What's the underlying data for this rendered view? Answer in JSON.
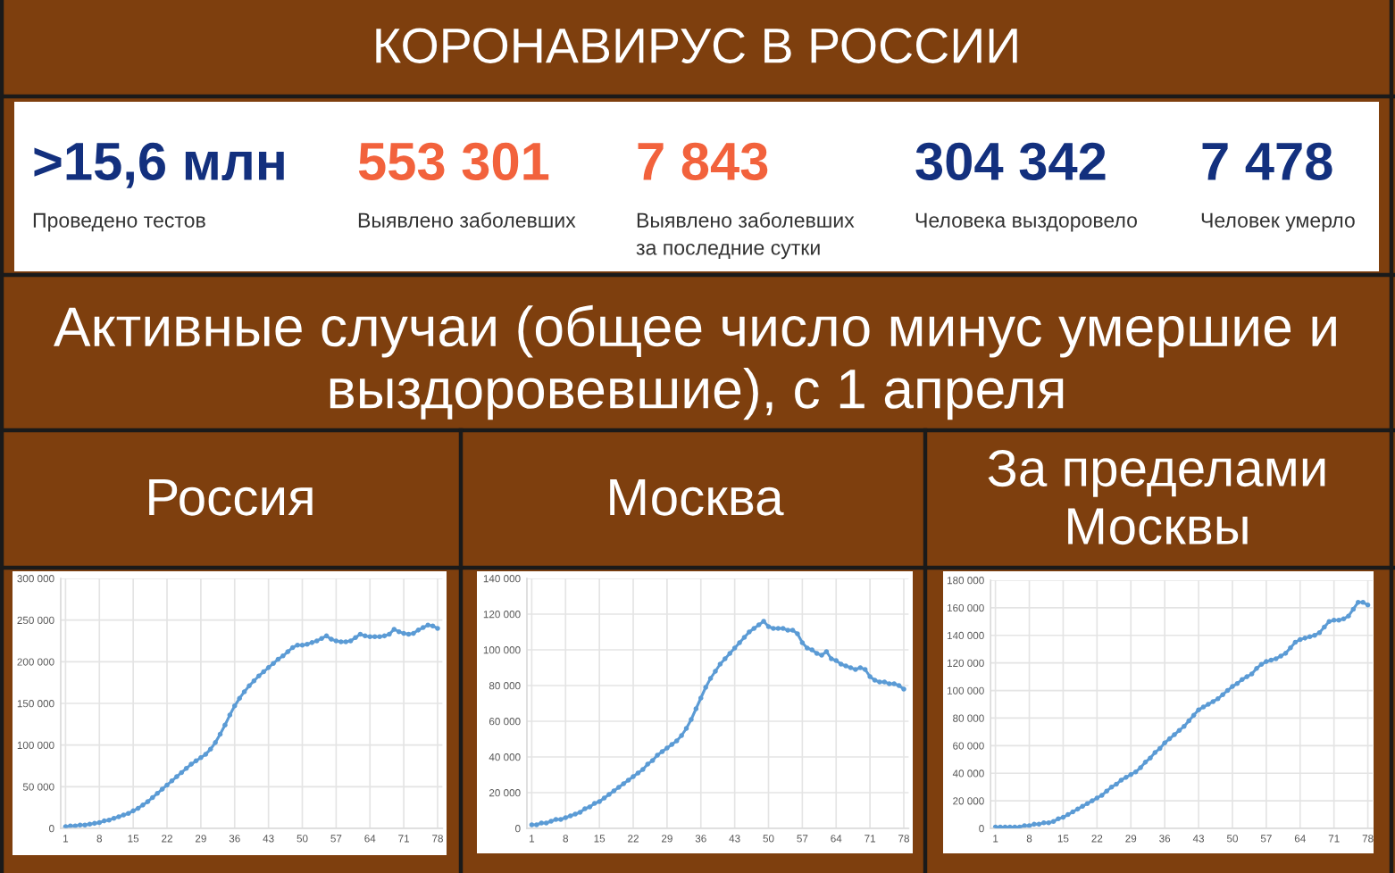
{
  "chart_data": [
    {
      "type": "other",
      "title": "КОРОНАВИРУС В РОССИИ",
      "annotations": [
        ">15,6 млн",
        "Проведено тестов",
        "553 301",
        "Выявлено заболевших",
        "7 843",
        "Выявлено заболевших\nза последние сутки",
        "304 342",
        "Человека выздоровело",
        "7 478",
        "Человек умерло"
      ],
      "colors": [
        "#13307e",
        "#f2623c",
        "#f2623c",
        "#13307e",
        "#13307e"
      ]
    },
    {
      "type": "other",
      "title": "Активные случаи (общее число минус умершие и\nвыздоровевшие), с 1 апреля"
    },
    {
      "type": "line",
      "title": "Россия",
      "color": "#5b9bd5",
      "marker": "circle",
      "line_style": "solid",
      "grid": true,
      "x": [
        1,
        2,
        3,
        4,
        5,
        6,
        7,
        8,
        9,
        10,
        11,
        12,
        13,
        14,
        15,
        16,
        17,
        18,
        19,
        20,
        21,
        22,
        23,
        24,
        25,
        26,
        27,
        28,
        29,
        30,
        31,
        32,
        33,
        34,
        35,
        36,
        37,
        38,
        39,
        40,
        41,
        42,
        43,
        44,
        45,
        46,
        47,
        48,
        49,
        50,
        51,
        52,
        53,
        54,
        55,
        56,
        57,
        58,
        59,
        60,
        61,
        62,
        63,
        64,
        65,
        66,
        67,
        68,
        69,
        70,
        71,
        72,
        73,
        74,
        75,
        76,
        77,
        78
      ],
      "values": [
        2000,
        3000,
        3000,
        4000,
        4000,
        5000,
        6000,
        7000,
        9000,
        10000,
        12000,
        14000,
        16000,
        18000,
        21000,
        24000,
        28000,
        32000,
        37000,
        42000,
        47000,
        52000,
        57000,
        62000,
        67000,
        72000,
        77000,
        81000,
        85000,
        89000,
        95000,
        103000,
        113000,
        124000,
        136000,
        147000,
        156000,
        164000,
        171000,
        177000,
        183000,
        188000,
        193000,
        198000,
        203000,
        207000,
        212000,
        217000,
        220000,
        220000,
        221000,
        223000,
        225000,
        228000,
        231000,
        227000,
        225000,
        224000,
        224000,
        225000,
        229000,
        233000,
        231000,
        230000,
        230000,
        230000,
        231000,
        233000,
        239000,
        236000,
        234000,
        233000,
        234000,
        238000,
        241000,
        244000,
        243000,
        240000
      ],
      "xlim": [
        0,
        79
      ],
      "xticks": [
        1,
        8,
        15,
        22,
        29,
        36,
        43,
        50,
        57,
        64,
        71,
        78
      ],
      "ylim": [
        0,
        300000
      ],
      "yticks": [
        0,
        {
          "value": 50000,
          "label": "50 000"
        },
        {
          "value": 100000,
          "label": "100 000"
        },
        {
          "value": 150000,
          "label": "150 000"
        },
        {
          "value": 200000,
          "label": "200 000"
        },
        {
          "value": 250000,
          "label": "250 000"
        },
        {
          "value": 300000,
          "label": "300 000"
        }
      ]
    },
    {
      "type": "line",
      "title": "Москва",
      "color": "#5b9bd5",
      "marker": "circle",
      "line_style": "solid",
      "grid": true,
      "x": [
        1,
        2,
        3,
        4,
        5,
        6,
        7,
        8,
        9,
        10,
        11,
        12,
        13,
        14,
        15,
        16,
        17,
        18,
        19,
        20,
        21,
        22,
        23,
        24,
        25,
        26,
        27,
        28,
        29,
        30,
        31,
        32,
        33,
        34,
        35,
        36,
        37,
        38,
        39,
        40,
        41,
        42,
        43,
        44,
        45,
        46,
        47,
        48,
        49,
        50,
        51,
        52,
        53,
        54,
        55,
        56,
        57,
        58,
        59,
        60,
        61,
        62,
        63,
        64,
        65,
        66,
        67,
        68,
        69,
        70,
        71,
        72,
        73,
        74,
        75,
        76,
        77,
        78
      ],
      "values": [
        2000,
        2000,
        3000,
        3000,
        4000,
        5000,
        5000,
        6000,
        7000,
        8000,
        9000,
        11000,
        12000,
        14000,
        15000,
        17000,
        19000,
        21000,
        23000,
        25000,
        27000,
        29000,
        31000,
        33000,
        36000,
        38000,
        41000,
        43000,
        45000,
        47000,
        49000,
        52000,
        56000,
        61000,
        67000,
        73000,
        79000,
        84000,
        88000,
        92000,
        95000,
        98000,
        101000,
        104000,
        107000,
        110000,
        112000,
        114000,
        116000,
        113000,
        112000,
        112000,
        112000,
        111000,
        111000,
        109000,
        104000,
        101000,
        100000,
        98000,
        97000,
        99000,
        95000,
        94000,
        92000,
        91000,
        90000,
        89000,
        90000,
        89000,
        85000,
        83000,
        82000,
        82000,
        81000,
        81000,
        80000,
        78000
      ],
      "xlim": [
        0,
        79
      ],
      "xticks": [
        1,
        8,
        15,
        22,
        29,
        36,
        43,
        50,
        57,
        64,
        71,
        78
      ],
      "ylim": [
        0,
        140000
      ],
      "yticks": [
        0,
        {
          "value": 20000,
          "label": "20 000"
        },
        {
          "value": 40000,
          "label": "40 000"
        },
        {
          "value": 60000,
          "label": "60 000"
        },
        {
          "value": 80000,
          "label": "80 000"
        },
        {
          "value": 100000,
          "label": "100 000"
        },
        {
          "value": 120000,
          "label": "120 000"
        },
        {
          "value": 140000,
          "label": "140 000"
        }
      ]
    },
    {
      "type": "line",
      "title": "За пределами\nМосквы",
      "color": "#5b9bd5",
      "marker": "circle",
      "line_style": "solid",
      "grid": true,
      "x": [
        1,
        2,
        3,
        4,
        5,
        6,
        7,
        8,
        9,
        10,
        11,
        12,
        13,
        14,
        15,
        16,
        17,
        18,
        19,
        20,
        21,
        22,
        23,
        24,
        25,
        26,
        27,
        28,
        29,
        30,
        31,
        32,
        33,
        34,
        35,
        36,
        37,
        38,
        39,
        40,
        41,
        42,
        43,
        44,
        45,
        46,
        47,
        48,
        49,
        50,
        51,
        52,
        53,
        54,
        55,
        56,
        57,
        58,
        59,
        60,
        61,
        62,
        63,
        64,
        65,
        66,
        67,
        68,
        69,
        70,
        71,
        72,
        73,
        74,
        75,
        76,
        77,
        78
      ],
      "values": [
        1000,
        1000,
        1000,
        1000,
        1000,
        1000,
        2000,
        2000,
        3000,
        3000,
        4000,
        4000,
        5000,
        7000,
        8000,
        10000,
        12000,
        14000,
        16000,
        18000,
        20000,
        22000,
        24000,
        27000,
        30000,
        32000,
        35000,
        37000,
        39000,
        41000,
        44000,
        48000,
        51000,
        55000,
        58000,
        62000,
        65000,
        68000,
        71000,
        74000,
        78000,
        82000,
        86000,
        88000,
        90000,
        92000,
        94000,
        97000,
        100000,
        103000,
        105000,
        108000,
        110000,
        112000,
        116000,
        119000,
        121000,
        122000,
        123000,
        125000,
        127000,
        131000,
        135000,
        137000,
        138000,
        139000,
        140000,
        142000,
        146000,
        150000,
        151000,
        151000,
        152000,
        154000,
        159000,
        164000,
        164000,
        162000
      ],
      "xlim": [
        0,
        79
      ],
      "xticks": [
        1,
        8,
        15,
        22,
        29,
        36,
        43,
        50,
        57,
        64,
        71,
        78
      ],
      "ylim": [
        0,
        180000
      ],
      "yticks": [
        0,
        {
          "value": 20000,
          "label": "20 000"
        },
        {
          "value": 40000,
          "label": "40 000"
        },
        {
          "value": 60000,
          "label": "60 000"
        },
        {
          "value": 80000,
          "label": "80 000"
        },
        {
          "value": 100000,
          "label": "100 000"
        },
        {
          "value": 120000,
          "label": "120 000"
        },
        {
          "value": 140000,
          "label": "140 000"
        },
        {
          "value": 160000,
          "label": "160 000"
        },
        {
          "value": 180000,
          "label": "180 000"
        }
      ]
    }
  ]
}
